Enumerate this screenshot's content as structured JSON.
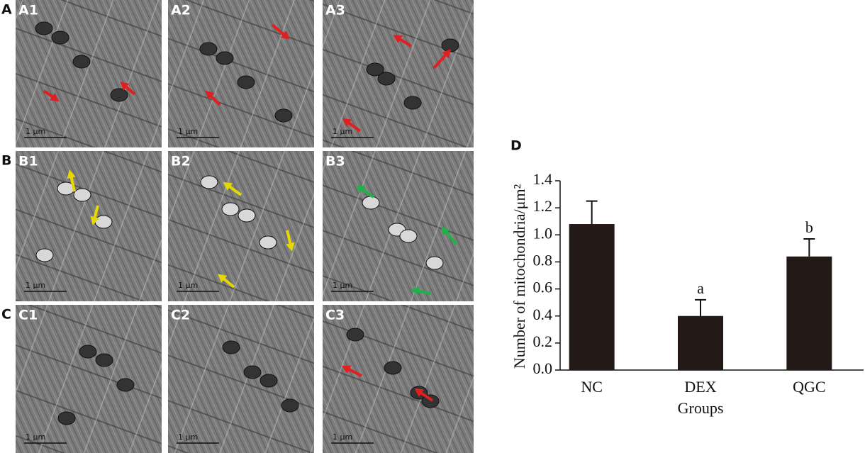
{
  "panels": {
    "rows": [
      {
        "label": "A",
        "images": [
          "A1",
          "A2",
          "A3"
        ]
      },
      {
        "label": "B",
        "images": [
          "B1",
          "B2",
          "B3"
        ]
      },
      {
        "label": "C",
        "images": [
          "C1",
          "C2",
          "C3"
        ]
      }
    ],
    "scale_bar": "1 μm"
  },
  "chart_data": {
    "type": "bar",
    "panel_label": "D",
    "categories": [
      "NC",
      "DEX",
      "QGC"
    ],
    "values": [
      1.08,
      0.4,
      0.84
    ],
    "errors": [
      0.17,
      0.12,
      0.13
    ],
    "significance": [
      null,
      "a",
      "b"
    ],
    "color": "#231a17",
    "y_label": "Number of mitochondria/μm²",
    "x_label": "Groups",
    "ylim": [
      0,
      1.4
    ],
    "yticks": [
      {
        "value": 0,
        "label": "0.0"
      },
      0.2,
      0.4,
      0.6,
      0.8,
      {
        "value": 1,
        "label": "1.0"
      },
      1.2,
      1.4
    ]
  }
}
